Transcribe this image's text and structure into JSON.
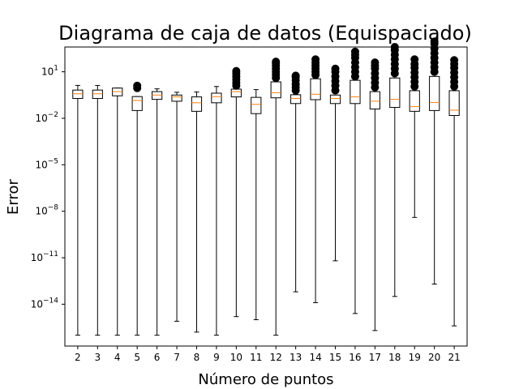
{
  "chart_data": {
    "type": "boxplot",
    "title": "Diagrama de caja de datos (Equispaciado)",
    "xlabel": "Número de puntos",
    "ylabel": "Error",
    "yscale": "log",
    "ylim_exponent": [
      -16.7,
      2.6
    ],
    "ytick_exponents": [
      1,
      -2,
      -5,
      -8,
      -11,
      -14
    ],
    "ytick_labels": [
      "10",
      "10",
      "10",
      "10",
      "10",
      "10"
    ],
    "ytick_superscripts": [
      "1",
      "−2",
      "−5",
      "−8",
      "−11",
      "−14"
    ],
    "categories": [
      "2",
      "3",
      "4",
      "5",
      "6",
      "7",
      "8",
      "9",
      "10",
      "11",
      "12",
      "13",
      "14",
      "15",
      "16",
      "17",
      "18",
      "19",
      "20",
      "21"
    ],
    "log10_values": [
      {
        "whisker_low": -16.0,
        "q1": -0.72,
        "median": -0.42,
        "q3": -0.18,
        "whisker_high": 0.12,
        "outliers_high": []
      },
      {
        "whisker_low": -16.0,
        "q1": -0.72,
        "median": -0.42,
        "q3": -0.18,
        "whisker_high": 0.12,
        "outliers_high": []
      },
      {
        "whisker_low": -16.0,
        "q1": -0.55,
        "median": -0.28,
        "q3": -0.05,
        "whisker_high": -0.05,
        "outliers_high": []
      },
      {
        "whisker_low": -16.0,
        "q1": -1.5,
        "median": -0.85,
        "q3": -0.6,
        "whisker_high": -0.6,
        "outliers_high": [
          -0.05,
          0.1
        ]
      },
      {
        "whisker_low": -16.0,
        "q1": -0.78,
        "median": -0.5,
        "q3": -0.28,
        "whisker_high": -0.1,
        "outliers_high": []
      },
      {
        "whisker_low": -15.1,
        "q1": -0.9,
        "median": -0.62,
        "q3": -0.5,
        "whisker_high": -0.32,
        "outliers_high": []
      },
      {
        "whisker_low": -15.8,
        "q1": -1.55,
        "median": -1.0,
        "q3": -0.62,
        "whisker_high": -0.3,
        "outliers_high": []
      },
      {
        "whisker_low": -16.0,
        "q1": -1.0,
        "median": -0.6,
        "q3": -0.38,
        "whisker_high": 0.05,
        "outliers_high": []
      },
      {
        "whisker_low": -14.8,
        "q1": -0.62,
        "median": -0.28,
        "q3": -0.12,
        "whisker_high": -0.08,
        "outliers_high": [
          0.1,
          0.3,
          0.5,
          0.7,
          0.9,
          1.05
        ]
      },
      {
        "whisker_low": -15.0,
        "q1": -1.7,
        "median": -1.1,
        "q3": -0.65,
        "whisker_high": -0.15,
        "outliers_high": []
      },
      {
        "whisker_low": -16.0,
        "q1": -0.68,
        "median": -0.35,
        "q3": 0.35,
        "whisker_high": 0.35,
        "outliers_high": [
          0.6,
          0.8,
          1.0,
          1.2,
          1.4,
          1.55,
          1.65
        ]
      },
      {
        "whisker_low": -13.2,
        "q1": -1.05,
        "median": -0.72,
        "q3": -0.48,
        "whisker_high": -0.45,
        "outliers_high": [
          -0.2,
          0.0,
          0.2,
          0.45,
          0.65,
          0.75
        ]
      },
      {
        "whisker_low": -13.9,
        "q1": -0.8,
        "median": -0.45,
        "q3": 0.55,
        "whisker_high": 0.55,
        "outliers_high": [
          0.8,
          1.0,
          1.2,
          1.4,
          1.6,
          1.8
        ]
      },
      {
        "whisker_low": -11.2,
        "q1": -1.05,
        "median": -0.72,
        "q3": -0.5,
        "whisker_high": -0.5,
        "outliers_high": [
          -0.2,
          0.1,
          0.4,
          0.7,
          1.0,
          1.2
        ]
      },
      {
        "whisker_low": -14.6,
        "q1": -1.05,
        "median": -0.62,
        "q3": 0.45,
        "whisker_high": 0.45,
        "outliers_high": [
          0.7,
          1.0,
          1.3,
          1.6,
          1.9,
          2.1,
          2.3
        ]
      },
      {
        "whisker_low": -15.7,
        "q1": -1.4,
        "median": -0.9,
        "q3": -0.28,
        "whisker_high": -0.28,
        "outliers_high": [
          0.0,
          0.3,
          0.6,
          0.9,
          1.2,
          1.4,
          1.6
        ]
      },
      {
        "whisker_low": -13.5,
        "q1": -1.3,
        "median": -0.78,
        "q3": 0.6,
        "whisker_high": 0.6,
        "outliers_high": [
          0.9,
          1.2,
          1.5,
          1.8,
          2.1,
          2.4,
          2.6
        ]
      },
      {
        "whisker_low": -8.4,
        "q1": -1.55,
        "median": -1.25,
        "q3": -0.22,
        "whisker_high": -0.22,
        "outliers_high": [
          0.05,
          0.35,
          0.65,
          0.95,
          1.25,
          1.5,
          1.8
        ]
      },
      {
        "whisker_low": -12.7,
        "q1": -1.5,
        "median": -0.98,
        "q3": 0.7,
        "whisker_high": 0.7,
        "outliers_high": [
          1.0,
          1.3,
          1.6,
          1.9,
          2.2,
          2.5,
          2.8,
          2.95
        ]
      },
      {
        "whisker_low": -15.4,
        "q1": -1.82,
        "median": -1.48,
        "q3": -0.22,
        "whisker_high": -0.22,
        "outliers_high": [
          0.05,
          0.35,
          0.65,
          0.95,
          1.25,
          1.5,
          1.75
        ]
      }
    ],
    "colors": {
      "box": "#000000",
      "median": "#ff7f0e",
      "outlier": "#000000",
      "background": "#ffffff"
    },
    "grid": false,
    "legend": "none"
  }
}
